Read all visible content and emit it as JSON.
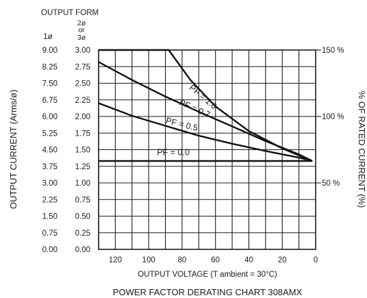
{
  "chart_data": {
    "type": "line",
    "title": "POWER FACTOR DERATING CHART 308AMX",
    "output_form_label": "OUTPUT FORM",
    "col_1phase_header": "1ø",
    "col_23phase_header": [
      "2ø",
      "or",
      "3ø"
    ],
    "xlabel": "OUTPUT VOLTAGE (T ambient = 30°C)",
    "ylabel_left": "OUTPUT CURRENT (Arms/ø)",
    "ylabel_right": "% OF RATED CURRENT (%)",
    "x_ticks": [
      120,
      100,
      80,
      60,
      40,
      20,
      0
    ],
    "xlim": [
      130,
      0
    ],
    "y_ticks_1phase": [
      "0.00",
      "0.75",
      "1.50",
      "2.25",
      "3.00",
      "3.75",
      "4.50",
      "5.25",
      "6.00",
      "6.75",
      "7.50",
      "8.25",
      "9.00"
    ],
    "y_ticks_3phase": [
      "0.00",
      "0.25",
      "0.50",
      "0.75",
      "1.00",
      "1.25",
      "1.50",
      "1.75",
      "2.00",
      "2.25",
      "2.50",
      "2.75",
      "3.00"
    ],
    "ylim": [
      0,
      3.0
    ],
    "right_ticks": [
      {
        "label": "150  %",
        "value": 3.0
      },
      {
        "label": "100  %",
        "value": 2.0
      },
      {
        "label": "50  %",
        "value": 1.0
      }
    ],
    "series": [
      {
        "name": "PF = 1.0",
        "x": [
          130,
          88,
          75,
          60,
          40,
          20,
          2
        ],
        "y": [
          3.0,
          3.0,
          2.55,
          2.15,
          1.78,
          1.52,
          1.33
        ]
      },
      {
        "name": "PF = 0.7",
        "x": [
          130,
          110,
          90,
          70,
          50,
          30,
          10,
          2
        ],
        "y": [
          2.82,
          2.55,
          2.3,
          2.07,
          1.85,
          1.63,
          1.43,
          1.33
        ]
      },
      {
        "name": "PF = 0.5",
        "x": [
          130,
          110,
          90,
          70,
          50,
          30,
          10,
          2
        ],
        "y": [
          2.2,
          2.01,
          1.86,
          1.71,
          1.59,
          1.48,
          1.38,
          1.33
        ]
      },
      {
        "name": "PF = 0.0",
        "x": [
          130,
          2
        ],
        "y": [
          1.33,
          1.33
        ]
      }
    ],
    "grid": true
  }
}
